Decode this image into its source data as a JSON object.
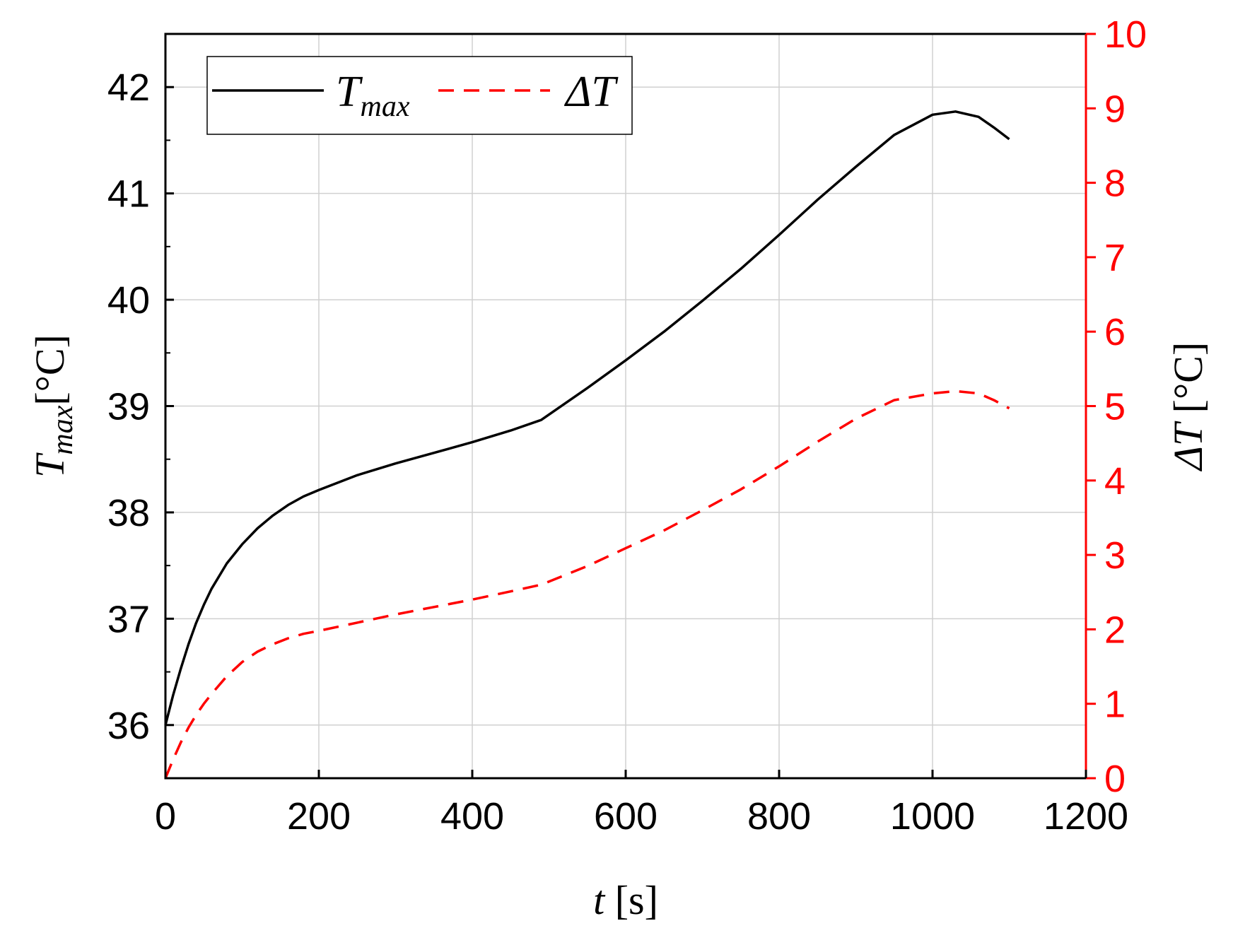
{
  "chart_data": {
    "type": "line",
    "x_axis": {
      "label": "t [s]",
      "label_parts": {
        "var": "t",
        "unit": " [s]"
      },
      "range": [
        0,
        1200
      ],
      "ticks": [
        "0",
        "200",
        "400",
        "600",
        "800",
        "1000",
        "1200"
      ]
    },
    "y_left": {
      "label": "Tmax[°C]",
      "label_parts": {
        "var": "T",
        "sub": "max",
        "unit": "[°C]"
      },
      "range": [
        35.5,
        42.5
      ],
      "ticks": [
        "36",
        "37",
        "38",
        "39",
        "40",
        "41",
        "42"
      ],
      "color": "#000000"
    },
    "y_right": {
      "label": "ΔT [°C]",
      "label_parts": {
        "var": "ΔT",
        "unit": " [°C]"
      },
      "range": [
        0,
        10
      ],
      "ticks": [
        "0",
        "1",
        "2",
        "3",
        "4",
        "5",
        "6",
        "7",
        "8",
        "9",
        "10"
      ],
      "color": "#ff0000"
    },
    "grid": true,
    "legend": {
      "placement": "top-left",
      "entries": [
        {
          "name": "Tmax",
          "base": "T",
          "sub": "max"
        },
        {
          "name": "ΔT",
          "base": "ΔT",
          "sub": ""
        }
      ]
    },
    "series": [
      {
        "name": "Tmax",
        "axis": "left",
        "color": "#000000",
        "dash": "solid",
        "x": [
          0,
          10,
          20,
          30,
          40,
          50,
          60,
          80,
          100,
          120,
          140,
          160,
          180,
          200,
          250,
          300,
          350,
          400,
          450,
          490,
          550,
          600,
          650,
          700,
          750,
          800,
          850,
          900,
          950,
          1000,
          1030,
          1060,
          1080,
          1100
        ],
        "y": [
          36.0,
          36.28,
          36.53,
          36.76,
          36.96,
          37.13,
          37.28,
          37.52,
          37.7,
          37.85,
          37.97,
          38.07,
          38.15,
          38.21,
          38.35,
          38.46,
          38.56,
          38.66,
          38.77,
          38.87,
          39.17,
          39.43,
          39.7,
          39.99,
          40.29,
          40.61,
          40.94,
          41.25,
          41.55,
          41.74,
          41.77,
          41.72,
          41.62,
          41.51
        ]
      },
      {
        "name": "ΔT",
        "axis": "right",
        "color": "#ff0000",
        "dash": "dashed",
        "x": [
          0,
          10,
          20,
          30,
          40,
          50,
          60,
          80,
          100,
          120,
          140,
          160,
          180,
          200,
          250,
          300,
          350,
          400,
          450,
          490,
          550,
          600,
          650,
          700,
          750,
          800,
          850,
          900,
          950,
          1000,
          1030,
          1060,
          1080,
          1100
        ],
        "y": [
          0.0,
          0.25,
          0.48,
          0.68,
          0.85,
          1.0,
          1.13,
          1.37,
          1.56,
          1.7,
          1.8,
          1.88,
          1.94,
          1.98,
          2.09,
          2.2,
          2.3,
          2.4,
          2.51,
          2.6,
          2.85,
          3.09,
          3.33,
          3.6,
          3.88,
          4.19,
          4.52,
          4.83,
          5.08,
          5.17,
          5.2,
          5.17,
          5.08,
          4.97
        ]
      }
    ]
  }
}
